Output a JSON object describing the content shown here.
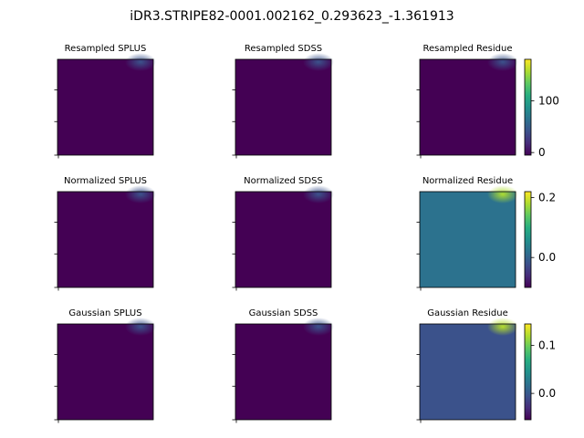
{
  "figure": {
    "title": "iDR3.STRIPE82-0001.002162_0.293623_-1.361913"
  },
  "chart_data": [
    {
      "type": "heatmap",
      "title": "Resampled SPLUS",
      "background": "#440154",
      "features": [
        {
          "kind": "glow",
          "label": "upper-right source",
          "color": "#3b528b"
        }
      ]
    },
    {
      "type": "heatmap",
      "title": "Resampled SDSS",
      "background": "#440154",
      "features": [
        {
          "kind": "glow",
          "label": "upper-right source",
          "color": "#3b528b"
        }
      ]
    },
    {
      "type": "heatmap",
      "title": "Resampled Residue",
      "background": "#440154",
      "features": [
        {
          "kind": "glow",
          "label": "upper-right source",
          "color": "#3b528b"
        }
      ],
      "colorbar": {
        "ticks": [
          {
            "value": 0,
            "label": "0"
          },
          {
            "value": 100,
            "label": "100"
          }
        ],
        "range": [
          -5,
          180
        ]
      }
    },
    {
      "type": "heatmap",
      "title": "Normalized SPLUS",
      "background": "#440154",
      "features": [
        {
          "kind": "glow",
          "label": "upper-right source",
          "color": "#3b528b"
        }
      ]
    },
    {
      "type": "heatmap",
      "title": "Normalized SDSS",
      "background": "#440154",
      "features": [
        {
          "kind": "glow",
          "label": "upper-right source",
          "color": "#3b528b"
        }
      ]
    },
    {
      "type": "heatmap",
      "title": "Normalized Residue",
      "background": "#2c728e",
      "features": [
        {
          "kind": "glow",
          "label": "upper-right source",
          "color": "#addc30"
        }
      ],
      "colorbar": {
        "ticks": [
          {
            "value": 0.0,
            "label": "0.0"
          },
          {
            "value": 0.2,
            "label": "0.2"
          }
        ],
        "range": [
          -0.1,
          0.22
        ]
      }
    },
    {
      "type": "heatmap",
      "title": "Gaussian SPLUS",
      "background": "#440154",
      "features": [
        {
          "kind": "glow",
          "label": "upper-right source",
          "color": "#3b528b"
        }
      ]
    },
    {
      "type": "heatmap",
      "title": "Gaussian SDSS",
      "background": "#440154",
      "features": [
        {
          "kind": "glow",
          "label": "upper-right source",
          "color": "#3b528b"
        }
      ]
    },
    {
      "type": "heatmap",
      "title": "Gaussian Residue",
      "background": "#3b528b",
      "features": [
        {
          "kind": "glow",
          "label": "upper-right source",
          "color": "#b5de2b"
        }
      ],
      "colorbar": {
        "ticks": [
          {
            "value": 0.0,
            "label": "0.0"
          },
          {
            "value": 0.1,
            "label": "0.1"
          }
        ],
        "range": [
          -0.055,
          0.145
        ]
      }
    }
  ]
}
